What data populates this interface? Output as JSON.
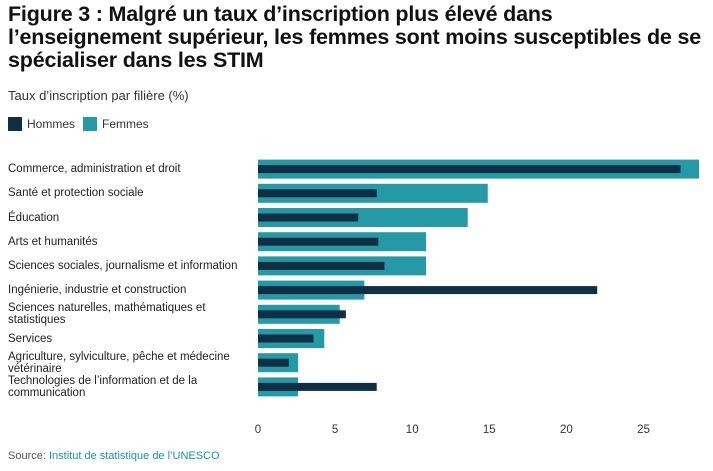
{
  "page": {
    "title": "Figure 3 : Malgré un taux d’inscription plus élevé dans l’enseignement supérieur, les femmes sont moins susceptibles de se spécialiser dans les STIM",
    "subtitle": "Taux d’inscription par filière (%)",
    "source_label": "Source:",
    "source_link": "Institut de statistique de l’UNESCO"
  },
  "colors": {
    "hommes": "#0e2f44",
    "femmes": "#2699a6",
    "axis_text": "#333333"
  },
  "chart_data": {
    "type": "bar",
    "orientation": "horizontal",
    "title": "Figure 3 : Malgré un taux d’inscription plus élevé dans l’enseignement supérieur, les femmes sont moins susceptibles de se spécialiser dans les STIM",
    "subtitle": "Taux d’inscription par filière (%)",
    "categories": [
      "Commerce, administration et droit",
      "Santé et protection sociale",
      "Éducation",
      "Arts et humanités",
      "Sciences sociales, journalisme et information",
      "Ingénierie, industrie et construction",
      "Sciences naturelles, mathématiques et statistiques",
      "Services",
      "Agriculture, sylviculture, pêche et médecine vétérinaire",
      "Technologies de l’information et de la communication"
    ],
    "series": [
      {
        "name": "Hommes",
        "values": [
          27.4,
          7.7,
          6.5,
          7.8,
          8.2,
          22.0,
          5.7,
          3.6,
          2.0,
          7.7
        ]
      },
      {
        "name": "Femmes",
        "values": [
          28.6,
          14.9,
          13.6,
          10.9,
          10.9,
          6.9,
          5.3,
          4.3,
          2.6,
          2.6
        ]
      }
    ],
    "xlim": [
      0,
      28.6
    ],
    "xticks": [
      "0",
      "5",
      "10",
      "15",
      "20",
      "25"
    ],
    "legend_position": "top-left",
    "grid": false
  }
}
